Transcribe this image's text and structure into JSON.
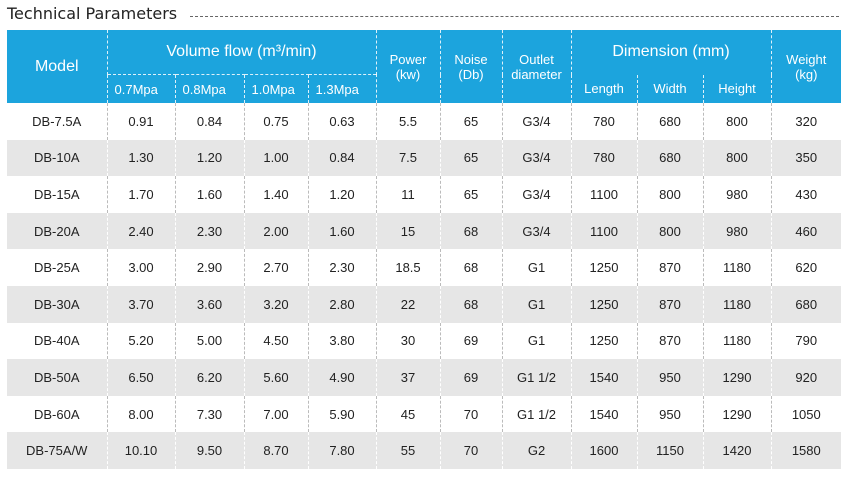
{
  "title": "Technical Parameters",
  "header": {
    "model": "Model",
    "volume_flow": "Volume flow (m³/min)",
    "pressures": [
      "0.7Mpa",
      "0.8Mpa",
      "1.0Mpa",
      "1.3Mpa"
    ],
    "power_line1": "Power",
    "power_line2": "(kw)",
    "noise_line1": "Noise",
    "noise_line2": "(Db)",
    "outlet_line1": "Outlet",
    "outlet_line2": "diameter",
    "dimension": "Dimension (mm)",
    "length": "Length",
    "width": "Width",
    "height": "Height",
    "weight_line1": "Weight",
    "weight_line2": "(kg)"
  },
  "rows": [
    [
      "DB-7.5A",
      "0.91",
      "0.84",
      "0.75",
      "0.63",
      "5.5",
      "65",
      "G3/4",
      "780",
      "680",
      "800",
      "320"
    ],
    [
      "DB-10A",
      "1.30",
      "1.20",
      "1.00",
      "0.84",
      "7.5",
      "65",
      "G3/4",
      "780",
      "680",
      "800",
      "350"
    ],
    [
      "DB-15A",
      "1.70",
      "1.60",
      "1.40",
      "1.20",
      "11",
      "65",
      "G3/4",
      "1100",
      "800",
      "980",
      "430"
    ],
    [
      "DB-20A",
      "2.40",
      "2.30",
      "2.00",
      "1.60",
      "15",
      "68",
      "G3/4",
      "1100",
      "800",
      "980",
      "460"
    ],
    [
      "DB-25A",
      "3.00",
      "2.90",
      "2.70",
      "2.30",
      "18.5",
      "68",
      "G1",
      "1250",
      "870",
      "1180",
      "620"
    ],
    [
      "DB-30A",
      "3.70",
      "3.60",
      "3.20",
      "2.80",
      "22",
      "68",
      "G1",
      "1250",
      "870",
      "1180",
      "680"
    ],
    [
      "DB-40A",
      "5.20",
      "5.00",
      "4.50",
      "3.80",
      "30",
      "69",
      "G1",
      "1250",
      "870",
      "1180",
      "790"
    ],
    [
      "DB-50A",
      "6.50",
      "6.20",
      "5.60",
      "4.90",
      "37",
      "69",
      "G1 1/2",
      "1540",
      "950",
      "1290",
      "920"
    ],
    [
      "DB-60A",
      "8.00",
      "7.30",
      "7.00",
      "5.90",
      "45",
      "70",
      "G1 1/2",
      "1540",
      "950",
      "1290",
      "1050"
    ],
    [
      "DB-75A/W",
      "10.10",
      "9.50",
      "8.70",
      "7.80",
      "55",
      "70",
      "G2",
      "1600",
      "1150",
      "1420",
      "1580"
    ]
  ]
}
